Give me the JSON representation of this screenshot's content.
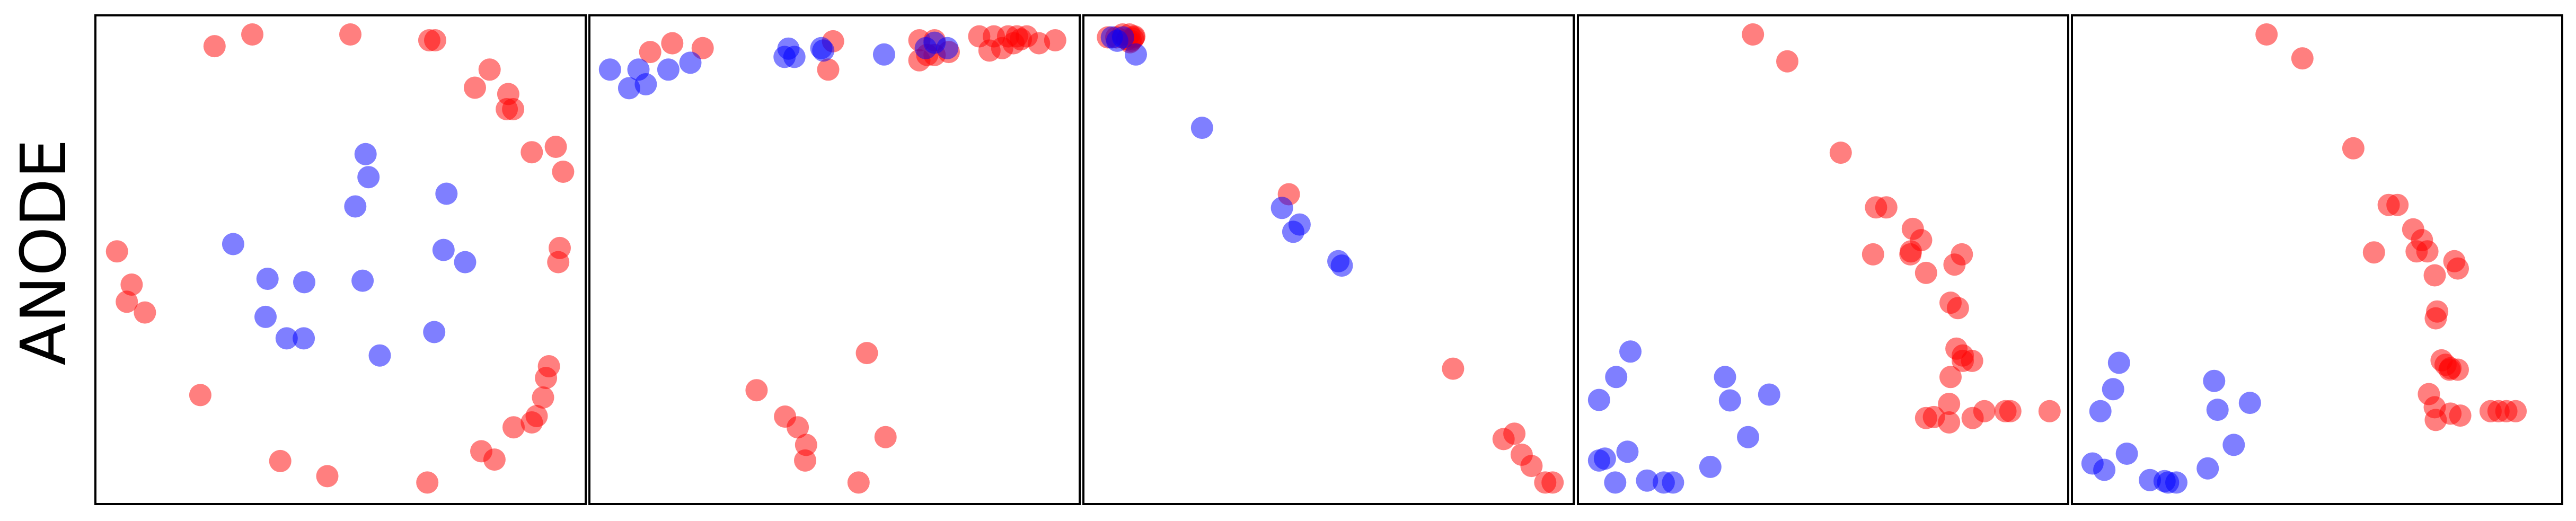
{
  "row_label": "ANODE",
  "colors": {
    "class_a": "#ff0000",
    "class_b": "#0000ff",
    "frame": "#000000"
  },
  "marker_alpha": 0.5,
  "chart_data": [
    {
      "type": "scatter",
      "title": "",
      "xlabel": "",
      "ylabel": "ANODE",
      "xlim": [
        0,
        1
      ],
      "ylim": [
        0,
        1
      ],
      "grid": false,
      "ticks": false,
      "series": [
        {
          "color": "#ff0000",
          "points": [
            [
              0.243,
              0.937
            ],
            [
              0.32,
              0.961
            ],
            [
              0.52,
              0.961
            ],
            [
              0.681,
              0.949
            ],
            [
              0.693,
              0.949
            ],
            [
              0.804,
              0.889
            ],
            [
              0.774,
              0.852
            ],
            [
              0.842,
              0.839
            ],
            [
              0.839,
              0.808
            ],
            [
              0.852,
              0.808
            ],
            [
              0.89,
              0.72
            ],
            [
              0.939,
              0.731
            ],
            [
              0.954,
              0.68
            ],
            [
              0.044,
              0.517
            ],
            [
              0.074,
              0.449
            ],
            [
              0.064,
              0.414
            ],
            [
              0.101,
              0.392
            ],
            [
              0.947,
              0.524
            ],
            [
              0.944,
              0.495
            ],
            [
              0.925,
              0.282
            ],
            [
              0.919,
              0.258
            ],
            [
              0.913,
              0.218
            ],
            [
              0.9,
              0.18
            ],
            [
              0.89,
              0.167
            ],
            [
              0.853,
              0.157
            ],
            [
              0.787,
              0.108
            ],
            [
              0.814,
              0.091
            ],
            [
              0.214,
              0.223
            ],
            [
              0.377,
              0.088
            ],
            [
              0.473,
              0.057
            ],
            [
              0.677,
              0.044
            ]
          ]
        },
        {
          "color": "#0000ff",
          "points": [
            [
              0.551,
              0.716
            ],
            [
              0.557,
              0.669
            ],
            [
              0.53,
              0.609
            ],
            [
              0.716,
              0.635
            ],
            [
              0.281,
              0.532
            ],
            [
              0.71,
              0.52
            ],
            [
              0.754,
              0.495
            ],
            [
              0.351,
              0.461
            ],
            [
              0.426,
              0.454
            ],
            [
              0.545,
              0.457
            ],
            [
              0.347,
              0.383
            ],
            [
              0.39,
              0.339
            ],
            [
              0.425,
              0.339
            ],
            [
              0.58,
              0.304
            ],
            [
              0.691,
              0.352
            ]
          ]
        }
      ]
    },
    {
      "type": "scatter",
      "title": "",
      "xlabel": "",
      "ylabel": "",
      "xlim": [
        0,
        1
      ],
      "ylim": [
        0,
        1
      ],
      "grid": false,
      "ticks": false,
      "series": [
        {
          "color": "#ff0000",
          "points": [
            [
              0.124,
              0.925
            ],
            [
              0.231,
              0.933
            ],
            [
              0.497,
              0.947
            ],
            [
              0.487,
              0.889
            ],
            [
              0.673,
              0.949
            ],
            [
              0.704,
              0.949
            ],
            [
              0.689,
              0.919
            ],
            [
              0.704,
              0.919
            ],
            [
              0.795,
              0.957
            ],
            [
              0.825,
              0.957
            ],
            [
              0.854,
              0.957
            ],
            [
              0.872,
              0.957
            ],
            [
              0.88,
              0.951
            ],
            [
              0.892,
              0.957
            ],
            [
              0.865,
              0.943
            ],
            [
              0.842,
              0.933
            ],
            [
              0.816,
              0.928
            ],
            [
              0.917,
              0.943
            ],
            [
              0.95,
              0.949
            ],
            [
              0.733,
              0.925
            ],
            [
              0.673,
              0.908
            ],
            [
              0.169,
              0.943
            ],
            [
              0.566,
              0.309
            ],
            [
              0.341,
              0.233
            ],
            [
              0.399,
              0.179
            ],
            [
              0.425,
              0.157
            ],
            [
              0.442,
              0.121
            ],
            [
              0.44,
              0.089
            ],
            [
              0.604,
              0.137
            ],
            [
              0.549,
              0.044
            ]
          ]
        },
        {
          "color": "#0000ff",
          "points": [
            [
              0.042,
              0.889
            ],
            [
              0.1,
              0.889
            ],
            [
              0.161,
              0.889
            ],
            [
              0.206,
              0.903
            ],
            [
              0.081,
              0.851
            ],
            [
              0.115,
              0.859
            ],
            [
              0.398,
              0.915
            ],
            [
              0.406,
              0.932
            ],
            [
              0.418,
              0.915
            ],
            [
              0.473,
              0.933
            ],
            [
              0.477,
              0.928
            ],
            [
              0.601,
              0.92
            ],
            [
              0.686,
              0.933
            ],
            [
              0.704,
              0.944
            ],
            [
              0.73,
              0.933
            ]
          ]
        }
      ]
    },
    {
      "type": "scatter",
      "title": "",
      "xlabel": "",
      "ylabel": "",
      "xlim": [
        0,
        1
      ],
      "ylim": [
        0,
        1
      ],
      "grid": false,
      "ticks": false,
      "series": [
        {
          "color": "#ff0000",
          "points": [
            [
              0.05,
              0.955
            ],
            [
              0.067,
              0.955
            ],
            [
              0.08,
              0.961
            ],
            [
              0.094,
              0.961
            ],
            [
              0.095,
              0.945
            ],
            [
              0.103,
              0.955
            ],
            [
              0.089,
              0.951
            ],
            [
              0.104,
              0.957
            ],
            [
              0.101,
              0.952
            ],
            [
              0.097,
              0.948
            ],
            [
              0.419,
              0.634
            ],
            [
              0.754,
              0.277
            ],
            [
              0.857,
              0.133
            ],
            [
              0.879,
              0.144
            ],
            [
              0.894,
              0.101
            ],
            [
              0.914,
              0.078
            ],
            [
              0.942,
              0.044
            ],
            [
              0.957,
              0.044
            ]
          ]
        },
        {
          "color": "#0000ff",
          "points": [
            [
              0.058,
              0.955
            ],
            [
              0.069,
              0.948
            ],
            [
              0.081,
              0.955
            ],
            [
              0.107,
              0.92
            ],
            [
              0.242,
              0.77
            ],
            [
              0.405,
              0.606
            ],
            [
              0.441,
              0.572
            ],
            [
              0.428,
              0.557
            ],
            [
              0.52,
              0.497
            ],
            [
              0.527,
              0.488
            ]
          ]
        }
      ]
    },
    {
      "type": "scatter",
      "title": "",
      "xlabel": "",
      "ylabel": "",
      "xlim": [
        0,
        1
      ],
      "ylim": [
        0,
        1
      ],
      "grid": false,
      "ticks": false,
      "series": [
        {
          "color": "#ff0000",
          "points": [
            [
              0.357,
              0.961
            ],
            [
              0.427,
              0.906
            ],
            [
              0.536,
              0.719
            ],
            [
              0.608,
              0.607
            ],
            [
              0.629,
              0.607
            ],
            [
              0.602,
              0.511
            ],
            [
              0.683,
              0.563
            ],
            [
              0.7,
              0.54
            ],
            [
              0.679,
              0.517
            ],
            [
              0.678,
              0.511
            ],
            [
              0.71,
              0.473
            ],
            [
              0.783,
              0.511
            ],
            [
              0.768,
              0.49
            ],
            [
              0.76,
              0.412
            ],
            [
              0.775,
              0.401
            ],
            [
              0.772,
              0.318
            ],
            [
              0.785,
              0.304
            ],
            [
              0.785,
              0.293
            ],
            [
              0.804,
              0.293
            ],
            [
              0.76,
              0.26
            ],
            [
              0.757,
              0.205
            ],
            [
              0.726,
              0.178
            ],
            [
              0.71,
              0.176
            ],
            [
              0.829,
              0.19
            ],
            [
              0.872,
              0.19
            ],
            [
              0.882,
              0.19
            ],
            [
              0.962,
              0.19
            ],
            [
              0.757,
              0.167
            ],
            [
              0.805,
              0.176
            ]
          ]
        },
        {
          "color": "#0000ff",
          "points": [
            [
              0.107,
              0.312
            ],
            [
              0.078,
              0.26
            ],
            [
              0.043,
              0.213
            ],
            [
              0.3,
              0.26
            ],
            [
              0.31,
              0.212
            ],
            [
              0.39,
              0.224
            ],
            [
              0.347,
              0.137
            ],
            [
              0.055,
              0.093
            ],
            [
              0.043,
              0.089
            ],
            [
              0.101,
              0.107
            ],
            [
              0.076,
              0.044
            ],
            [
              0.141,
              0.048
            ],
            [
              0.175,
              0.044
            ],
            [
              0.194,
              0.044
            ],
            [
              0.27,
              0.076
            ]
          ]
        }
      ]
    },
    {
      "type": "scatter",
      "title": "",
      "xlabel": "",
      "ylabel": "",
      "xlim": [
        0,
        1
      ],
      "ylim": [
        0,
        1
      ],
      "grid": false,
      "ticks": false,
      "series": [
        {
          "color": "#ff0000",
          "points": [
            [
              0.397,
              0.961
            ],
            [
              0.47,
              0.912
            ],
            [
              0.574,
              0.728
            ],
            [
              0.646,
              0.612
            ],
            [
              0.664,
              0.612
            ],
            [
              0.696,
              0.562
            ],
            [
              0.714,
              0.54
            ],
            [
              0.725,
              0.517
            ],
            [
              0.703,
              0.517
            ],
            [
              0.78,
              0.497
            ],
            [
              0.787,
              0.482
            ],
            [
              0.74,
              0.468
            ],
            [
              0.745,
              0.394
            ],
            [
              0.742,
              0.38
            ],
            [
              0.754,
              0.294
            ],
            [
              0.762,
              0.285
            ],
            [
              0.77,
              0.275
            ],
            [
              0.772,
              0.278
            ],
            [
              0.787,
              0.275
            ],
            [
              0.728,
              0.225
            ],
            [
              0.74,
              0.198
            ],
            [
              0.742,
              0.172
            ],
            [
              0.792,
              0.181
            ],
            [
              0.854,
              0.19
            ],
            [
              0.87,
              0.19
            ],
            [
              0.886,
              0.19
            ],
            [
              0.905,
              0.19
            ],
            [
              0.616,
              0.515
            ],
            [
              0.772,
              0.185
            ]
          ]
        },
        {
          "color": "#0000ff",
          "points": [
            [
              0.096,
              0.289
            ],
            [
              0.084,
              0.235
            ],
            [
              0.058,
              0.19
            ],
            [
              0.29,
              0.252
            ],
            [
              0.297,
              0.193
            ],
            [
              0.363,
              0.207
            ],
            [
              0.33,
              0.121
            ],
            [
              0.112,
              0.103
            ],
            [
              0.042,
              0.083
            ],
            [
              0.066,
              0.07
            ],
            [
              0.159,
              0.049
            ],
            [
              0.189,
              0.047
            ],
            [
              0.196,
              0.044
            ],
            [
              0.213,
              0.044
            ],
            [
              0.277,
              0.073
            ]
          ]
        }
      ]
    }
  ]
}
